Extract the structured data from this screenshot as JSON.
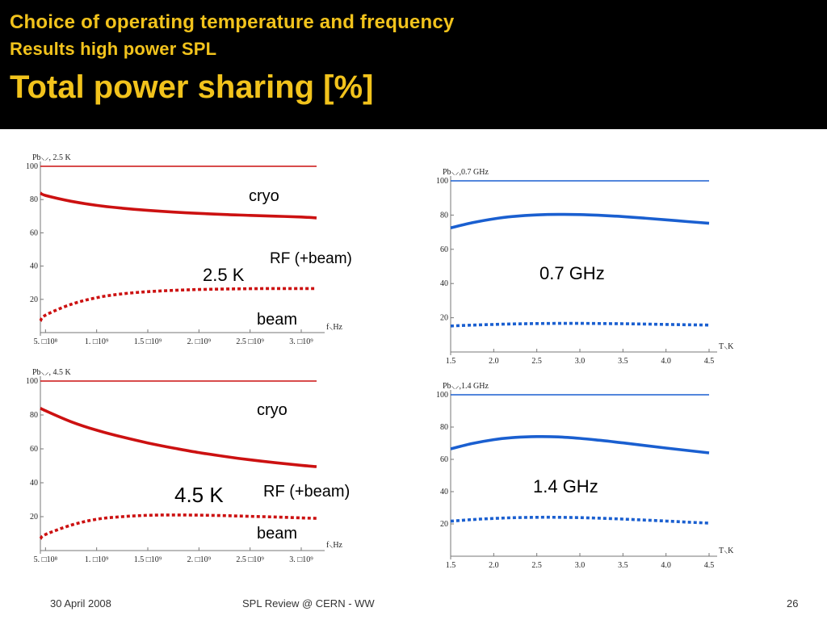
{
  "slide": {
    "title_line1": "Choice of operating temperature and frequency",
    "title_line2": "Results high power SPL",
    "title_main": "Total power sharing [%]",
    "accent_color": "#f2c31c",
    "header_bg": "#000000"
  },
  "footer": {
    "date": "30 April 2008",
    "center": "SPL Review  @ CERN - WW",
    "page": "26"
  },
  "annotations": {
    "cryo": "cryo",
    "rf": "RF (+beam)",
    "beam": "beam",
    "t25": "2.5 K",
    "t45": "4.5 K",
    "f07": "0.7 GHz",
    "f14": "1.4 GHz"
  },
  "chart_data": [
    {
      "id": "tl",
      "type": "line",
      "title": "Pb⸜⸝, 2.5 K",
      "xlabel": "f⸜Hz",
      "xlim": [
        450000000,
        3150000000
      ],
      "ylim": [
        0,
        100
      ],
      "xticks": [
        500000000,
        1000000000,
        1500000000,
        2000000000,
        2500000000,
        3000000000
      ],
      "xtick_labels": [
        "5. □10⁸",
        "1. □10⁹",
        "1.5 □10⁹",
        "2. □10⁹",
        "2.5 □10⁹",
        "3. □10⁹"
      ],
      "yticks": [
        20,
        40,
        60,
        80,
        100
      ],
      "color": "#cc1111",
      "series": [
        {
          "style": "thin",
          "x": [
            450000000,
            3150000000
          ],
          "values": [
            100,
            100
          ]
        },
        {
          "style": "solid",
          "x": [
            450000000,
            500000000,
            750000000,
            1000000000,
            1250000000,
            1500000000,
            1750000000,
            2000000000,
            2250000000,
            2500000000,
            2750000000,
            3000000000,
            3150000000
          ],
          "values": [
            84,
            82.5,
            79,
            76.5,
            74.8,
            73.5,
            72.5,
            71.7,
            71,
            70.5,
            70,
            69.5,
            69
          ]
        },
        {
          "style": "dashed",
          "x": [
            450000000,
            500000000,
            750000000,
            1000000000,
            1250000000,
            1500000000,
            1750000000,
            2000000000,
            2250000000,
            2500000000,
            2750000000,
            3000000000,
            3150000000
          ],
          "values": [
            7,
            10.5,
            17,
            21,
            23.3,
            24.6,
            25.4,
            25.9,
            26.2,
            26.4,
            26.5,
            26.5,
            26.5
          ]
        }
      ]
    },
    {
      "id": "tr",
      "type": "line",
      "title": "Pb⸜⸝,0.7  GHz",
      "xlabel": "T⸜K",
      "xlim": [
        1.5,
        4.5
      ],
      "ylim": [
        0,
        100
      ],
      "xticks": [
        1.5,
        2.0,
        2.5,
        3.0,
        3.5,
        4.0,
        4.5
      ],
      "xtick_labels": [
        "1.5",
        "2.0",
        "2.5",
        "3.0",
        "3.5",
        "4.0",
        "4.5"
      ],
      "yticks": [
        20,
        40,
        60,
        80,
        100
      ],
      "color": "#1a5fd0",
      "series": [
        {
          "style": "thin",
          "x": [
            1.5,
            4.5
          ],
          "values": [
            100,
            100
          ]
        },
        {
          "style": "solid",
          "x": [
            1.5,
            1.75,
            2.0,
            2.25,
            2.5,
            2.75,
            3.0,
            3.25,
            3.5,
            3.75,
            4.0,
            4.25,
            4.5
          ],
          "values": [
            72.5,
            75.5,
            77.8,
            79.3,
            80.1,
            80.4,
            80.3,
            79.8,
            79.1,
            78.2,
            77.2,
            76.2,
            75.2
          ]
        },
        {
          "style": "dashed",
          "x": [
            1.5,
            1.75,
            2.0,
            2.25,
            2.5,
            2.75,
            3.0,
            3.25,
            3.5,
            3.75,
            4.0,
            4.25,
            4.5
          ],
          "values": [
            15.2,
            15.7,
            16.1,
            16.4,
            16.6,
            16.7,
            16.7,
            16.6,
            16.5,
            16.3,
            16.1,
            15.9,
            15.7
          ]
        }
      ]
    },
    {
      "id": "bl",
      "type": "line",
      "title": "Pb⸜⸝, 4.5 K",
      "xlabel": "f⸜Hz",
      "xlim": [
        450000000,
        3150000000
      ],
      "ylim": [
        0,
        100
      ],
      "xticks": [
        500000000,
        1000000000,
        1500000000,
        2000000000,
        2500000000,
        3000000000
      ],
      "xtick_labels": [
        "5. □10⁸",
        "1. □10⁹",
        "1.5 □10⁹",
        "2. □10⁹",
        "2.5 □10⁹",
        "3. □10⁹"
      ],
      "yticks": [
        20,
        40,
        60,
        80,
        100
      ],
      "color": "#cc1111",
      "series": [
        {
          "style": "thin",
          "x": [
            450000000,
            3150000000
          ],
          "values": [
            100,
            100
          ]
        },
        {
          "style": "solid",
          "x": [
            450000000,
            500000000,
            750000000,
            1000000000,
            1250000000,
            1500000000,
            1750000000,
            2000000000,
            2250000000,
            2500000000,
            2750000000,
            3000000000,
            3150000000
          ],
          "values": [
            84,
            82.5,
            76,
            71,
            67,
            63.5,
            60.5,
            57.8,
            55.5,
            53.5,
            51.8,
            50.3,
            49.5
          ]
        },
        {
          "style": "dashed",
          "x": [
            450000000,
            500000000,
            750000000,
            1000000000,
            1250000000,
            1500000000,
            1750000000,
            2000000000,
            2250000000,
            2500000000,
            2750000000,
            3000000000,
            3150000000
          ],
          "values": [
            7,
            9.5,
            15,
            18.5,
            20,
            20.8,
            21,
            20.9,
            20.6,
            20.2,
            19.8,
            19.3,
            19
          ]
        }
      ]
    },
    {
      "id": "br",
      "type": "line",
      "title": "Pb⸜⸝,1.4  GHz",
      "xlabel": "T⸜K",
      "xlim": [
        1.5,
        4.5
      ],
      "ylim": [
        0,
        100
      ],
      "xticks": [
        1.5,
        2.0,
        2.5,
        3.0,
        3.5,
        4.0,
        4.5
      ],
      "xtick_labels": [
        "1.5",
        "2.0",
        "2.5",
        "3.0",
        "3.5",
        "4.0",
        "4.5"
      ],
      "yticks": [
        20,
        40,
        60,
        80,
        100
      ],
      "color": "#1a5fd0",
      "series": [
        {
          "style": "thin",
          "x": [
            1.5,
            4.5
          ],
          "values": [
            100,
            100
          ]
        },
        {
          "style": "solid",
          "x": [
            1.5,
            1.75,
            2.0,
            2.25,
            2.5,
            2.75,
            3.0,
            3.25,
            3.5,
            3.75,
            4.0,
            4.25,
            4.5
          ],
          "values": [
            66.5,
            69.8,
            72.2,
            73.6,
            74.1,
            73.9,
            73.0,
            71.7,
            70.2,
            68.6,
            67.0,
            65.5,
            64.0
          ]
        },
        {
          "style": "dashed",
          "x": [
            1.5,
            1.75,
            2.0,
            2.25,
            2.5,
            2.75,
            3.0,
            3.25,
            3.5,
            3.75,
            4.0,
            4.25,
            4.5
          ],
          "values": [
            21.7,
            22.7,
            23.4,
            23.9,
            24.1,
            24.1,
            23.9,
            23.5,
            23.0,
            22.4,
            21.8,
            21.1,
            20.5
          ]
        }
      ]
    }
  ]
}
